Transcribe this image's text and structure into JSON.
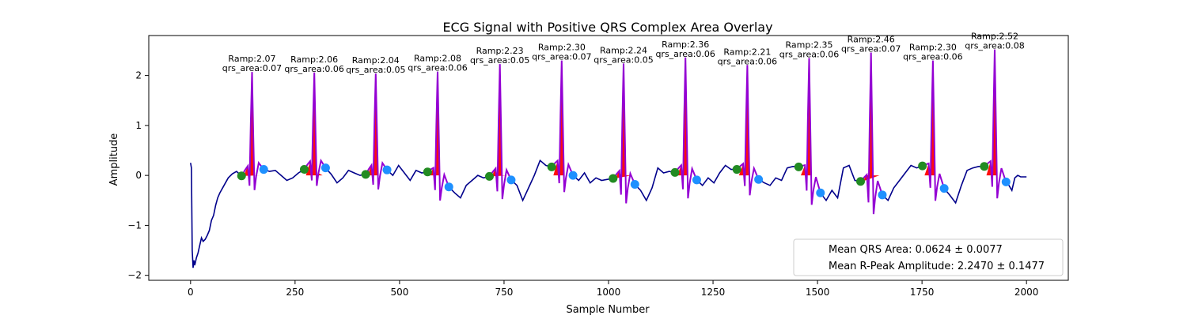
{
  "chart_data": {
    "type": "line",
    "title": "ECG Signal with Positive QRS Complex Area Overlay",
    "xlabel": "Sample Number",
    "ylabel": "Amplitude",
    "xlim": [
      -100,
      2100
    ],
    "ylim": [
      -2.1,
      2.8
    ],
    "x_ticks": [
      0,
      250,
      500,
      750,
      1000,
      1250,
      1500,
      1750,
      2000
    ],
    "y_ticks": [
      -2,
      -1,
      0,
      1,
      2
    ],
    "grid": false,
    "legend_position": "lower right",
    "legend": {
      "mean_qrs_area": "Mean QRS Area: 0.0624 ± 0.0077",
      "mean_r_amp": "Mean R-Peak Amplitude: 2.2470 ± 0.1477"
    },
    "colors": {
      "signal": "#00008b",
      "qrs_segment": "#9400d3",
      "qrs_area_fill": "#ff0000",
      "onset_marker": "#228b22",
      "offset_marker": "#1e90ff"
    },
    "signal_start": {
      "x": [
        0,
        2,
        4,
        6,
        8,
        10,
        14,
        18,
        22,
        26,
        30,
        35,
        40,
        45,
        50,
        55,
        60,
        65,
        70,
        80,
        90,
        100,
        110
      ],
      "y": [
        0.25,
        0.15,
        -1.5,
        -1.85,
        -1.7,
        -1.8,
        -1.65,
        -1.55,
        -1.4,
        -1.25,
        -1.32,
        -1.28,
        -1.2,
        -1.1,
        -0.9,
        -0.8,
        -0.6,
        -0.45,
        -0.35,
        -0.2,
        -0.05,
        0.03,
        0.08
      ]
    },
    "beats": [
      {
        "r_x": 147,
        "r_y": 2.07,
        "onset_x": 122,
        "onset_y": -0.01,
        "offset_x": 175,
        "offset_y": 0.12,
        "qrs_area": "0.07",
        "label_ramp": "Ramp:2.07",
        "label_area": "qrs_area:0.07"
      },
      {
        "r_x": 296,
        "r_y": 2.06,
        "onset_x": 272,
        "onset_y": 0.12,
        "offset_x": 323,
        "offset_y": 0.15,
        "qrs_area": "0.06",
        "label_ramp": "Ramp:2.06",
        "label_area": "qrs_area:0.06"
      },
      {
        "r_x": 443,
        "r_y": 2.04,
        "onset_x": 419,
        "onset_y": 0.02,
        "offset_x": 470,
        "offset_y": 0.11,
        "qrs_area": "0.05",
        "label_ramp": "Ramp:2.04",
        "label_area": "qrs_area:0.05"
      },
      {
        "r_x": 591,
        "r_y": 2.08,
        "onset_x": 567,
        "onset_y": 0.07,
        "offset_x": 618,
        "offset_y": -0.23,
        "qrs_area": "0.06",
        "label_ramp": "Ramp:2.08",
        "label_area": "qrs_area:0.06"
      },
      {
        "r_x": 740,
        "r_y": 2.23,
        "onset_x": 715,
        "onset_y": -0.02,
        "offset_x": 767,
        "offset_y": -0.09,
        "qrs_area": "0.05",
        "label_ramp": "Ramp:2.23",
        "label_area": "qrs_area:0.05"
      },
      {
        "r_x": 888,
        "r_y": 2.3,
        "onset_x": 864,
        "onset_y": 0.17,
        "offset_x": 915,
        "offset_y": 0.0,
        "qrs_area": "0.07",
        "label_ramp": "Ramp:2.30",
        "label_area": "qrs_area:0.07"
      },
      {
        "r_x": 1036,
        "r_y": 2.24,
        "onset_x": 1011,
        "onset_y": -0.06,
        "offset_x": 1063,
        "offset_y": -0.18,
        "qrs_area": "0.05",
        "label_ramp": "Ramp:2.24",
        "label_area": "qrs_area:0.05"
      },
      {
        "r_x": 1184,
        "r_y": 2.36,
        "onset_x": 1159,
        "onset_y": 0.06,
        "offset_x": 1211,
        "offset_y": -0.09,
        "qrs_area": "0.06",
        "label_ramp": "Ramp:2.36",
        "label_area": "qrs_area:0.06"
      },
      {
        "r_x": 1332,
        "r_y": 2.21,
        "onset_x": 1307,
        "onset_y": 0.12,
        "offset_x": 1359,
        "offset_y": -0.08,
        "qrs_area": "0.06",
        "label_ramp": "Ramp:2.21",
        "label_area": "qrs_area:0.06"
      },
      {
        "r_x": 1480,
        "r_y": 2.35,
        "onset_x": 1455,
        "onset_y": 0.17,
        "offset_x": 1507,
        "offset_y": -0.35,
        "qrs_area": "0.06",
        "label_ramp": "Ramp:2.35",
        "label_area": "qrs_area:0.06"
      },
      {
        "r_x": 1628,
        "r_y": 2.46,
        "onset_x": 1603,
        "onset_y": -0.12,
        "offset_x": 1655,
        "offset_y": -0.39,
        "qrs_area": "0.07",
        "label_ramp": "Ramp:2.46",
        "label_area": "qrs_area:0.07"
      },
      {
        "r_x": 1776,
        "r_y": 2.3,
        "onset_x": 1751,
        "onset_y": 0.19,
        "offset_x": 1803,
        "offset_y": -0.26,
        "qrs_area": "0.06",
        "label_ramp": "Ramp:2.30",
        "label_area": "qrs_area:0.06"
      },
      {
        "r_x": 1924,
        "r_y": 2.52,
        "onset_x": 1899,
        "onset_y": 0.18,
        "offset_x": 1951,
        "offset_y": -0.13,
        "qrs_area": "0.08",
        "label_ramp": "Ramp:2.52",
        "label_area": "qrs_area:0.08"
      }
    ],
    "interbeat_baseline": [
      [
        0.08,
        0.1,
        0.0,
        -0.1,
        -0.05,
        0.05
      ],
      [
        0.02,
        -0.15,
        -0.05,
        0.1,
        0.05,
        0.0
      ],
      [
        0.0,
        0.2,
        0.05,
        -0.1,
        0.1,
        0.05
      ],
      [
        -0.35,
        -0.45,
        -0.2,
        -0.1,
        0.0,
        -0.05
      ],
      [
        -0.2,
        -0.5,
        -0.25,
        0.0,
        0.3,
        0.2
      ],
      [
        -0.1,
        0.05,
        -0.15,
        -0.05,
        -0.1,
        -0.08
      ],
      [
        -0.3,
        -0.5,
        -0.25,
        0.15,
        0.05,
        0.08
      ],
      [
        -0.2,
        -0.05,
        -0.15,
        0.05,
        0.2,
        0.12
      ],
      [
        -0.15,
        -0.2,
        -0.05,
        -0.1,
        0.15,
        0.18
      ],
      [
        -0.5,
        -0.3,
        -0.45,
        0.15,
        0.2,
        -0.1
      ],
      [
        -0.5,
        -0.25,
        -0.1,
        0.05,
        0.2,
        0.15
      ],
      [
        -0.4,
        -0.55,
        -0.2,
        0.1,
        0.15,
        0.18
      ],
      [
        -0.2,
        -0.3,
        -0.05,
        0.0,
        -0.03,
        -0.03
      ]
    ]
  }
}
